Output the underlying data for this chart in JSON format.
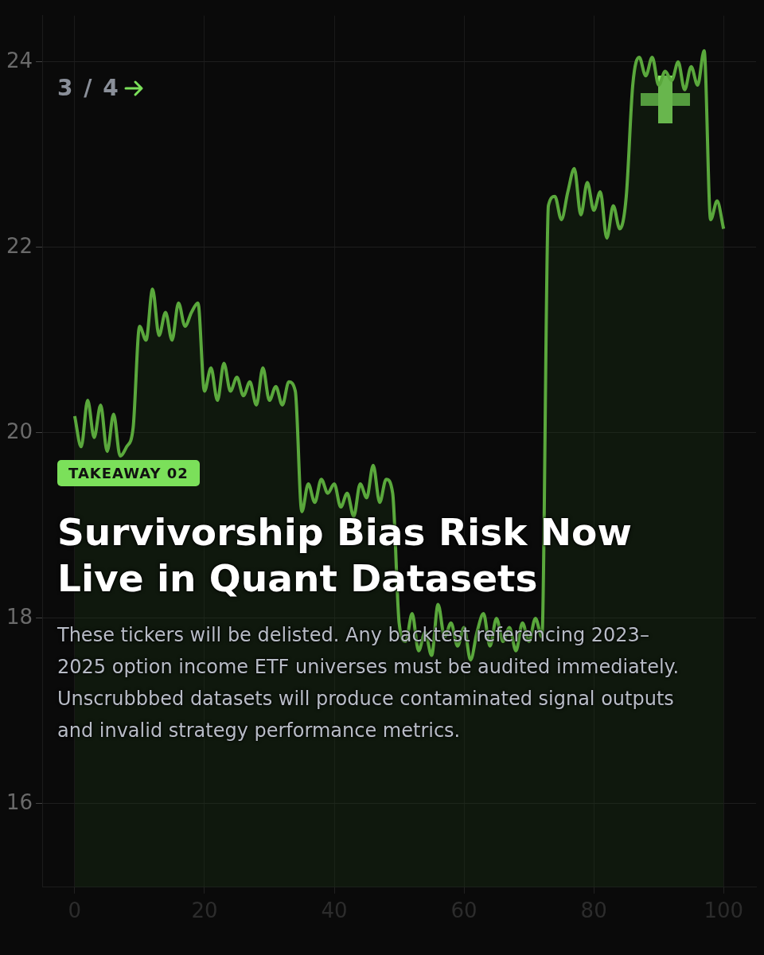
{
  "chart_data": {
    "type": "area",
    "title": "Survivorship Bias Risk Now Live in Quant Datasets",
    "annotations": [
      "3 / 4",
      "TAKEAWAY 02",
      "These tickers will be delisted. Any backtest referencing 2023–2025 option income ETF universes must be audited immediately. Unscrubbbed datasets will produce contaminated signal outputs and invalid strategy performance metrics."
    ],
    "x": [
      0,
      1,
      2,
      3,
      4,
      5,
      6,
      7,
      8,
      9,
      10,
      11,
      12,
      13,
      14,
      15,
      16,
      17,
      18,
      19,
      20,
      21,
      22,
      23,
      24,
      25,
      26,
      27,
      28,
      29,
      30,
      31,
      32,
      33,
      34,
      35,
      36,
      37,
      38,
      39,
      40,
      41,
      42,
      43,
      44,
      45,
      46,
      47,
      48,
      49,
      50,
      51,
      52,
      53,
      54,
      55,
      56,
      57,
      58,
      59,
      60,
      61,
      62,
      63,
      64,
      65,
      66,
      67,
      68,
      69,
      70,
      71,
      72,
      73,
      74,
      75,
      76,
      77,
      78,
      79,
      80,
      81,
      82,
      83,
      84,
      85,
      86,
      87,
      88,
      89,
      90,
      91,
      92,
      93,
      94,
      95,
      96,
      97,
      98,
      99,
      100
    ],
    "series": [
      {
        "color": "#5aa83c",
        "values": [
          20.18,
          19.85,
          20.35,
          19.95,
          20.3,
          19.8,
          20.2,
          19.75,
          19.85,
          20.05,
          21.15,
          21.0,
          21.55,
          21.05,
          21.3,
          21.0,
          21.4,
          21.15,
          21.3,
          21.4,
          20.45,
          20.7,
          20.35,
          20.75,
          20.45,
          20.6,
          20.4,
          20.55,
          20.3,
          20.7,
          20.35,
          20.5,
          20.3,
          20.55,
          20.45,
          19.15,
          19.45,
          19.25,
          19.5,
          19.35,
          19.45,
          19.2,
          19.35,
          19.1,
          19.45,
          19.3,
          19.65,
          19.25,
          19.5,
          19.35,
          17.95,
          17.75,
          18.05,
          17.65,
          17.85,
          17.6,
          18.15,
          17.8,
          17.95,
          17.7,
          17.9,
          17.55,
          17.85,
          18.05,
          17.7,
          18.0,
          17.75,
          17.9,
          17.65,
          17.95,
          17.75,
          18.0,
          17.8,
          22.45,
          22.55,
          22.3,
          22.6,
          22.85,
          22.35,
          22.7,
          22.4,
          22.6,
          22.1,
          22.45,
          22.2,
          22.55,
          23.75,
          24.05,
          23.85,
          24.05,
          23.75,
          23.9,
          23.8,
          24.0,
          23.7,
          23.95,
          23.75,
          24.12,
          22.3,
          22.5,
          22.2
        ]
      }
    ],
    "xlim": [
      -5,
      105
    ],
    "xticks": [
      0,
      20,
      40,
      60,
      80,
      100
    ],
    "ylim": [
      15.1,
      24.5
    ],
    "yticks": [
      16,
      18,
      20,
      22,
      24
    ],
    "grid": true,
    "legend": false,
    "marker": "none",
    "line_style": "solid"
  }
}
